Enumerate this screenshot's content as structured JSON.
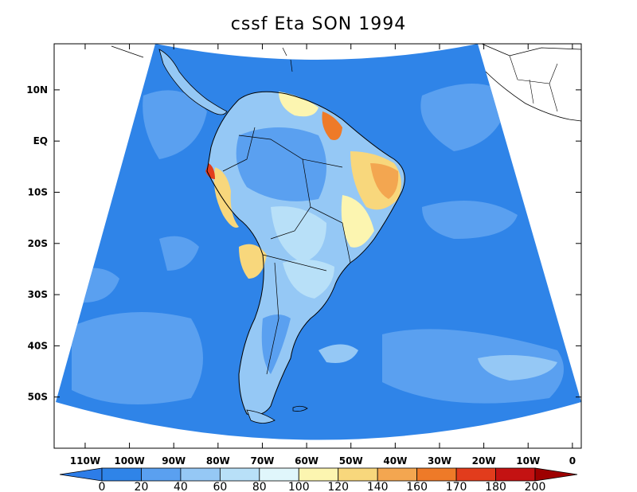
{
  "title": "cssf Eta SON 1994",
  "map": {
    "lat_labels": [
      "10N",
      "EQ",
      "10S",
      "20S",
      "30S",
      "40S",
      "50S"
    ],
    "lon_labels": [
      "110W",
      "100W",
      "90W",
      "80W",
      "70W",
      "60W",
      "50W",
      "40W",
      "30W",
      "20W",
      "10W",
      "0"
    ],
    "lat_values": [
      10,
      0,
      -10,
      -20,
      -30,
      -40,
      -50
    ],
    "lon_values": [
      -110,
      -100,
      -90,
      -80,
      -70,
      -60,
      -50,
      -40,
      -30,
      -20,
      -10,
      0
    ],
    "extent": {
      "lon_min": -117,
      "lon_max": 2,
      "lat_min": -60,
      "lat_max": 19
    }
  },
  "colorbar": {
    "labels": [
      "0",
      "20",
      "40",
      "60",
      "80",
      "100",
      "120",
      "140",
      "160",
      "170",
      "180",
      "200"
    ],
    "colors": [
      "#2d7de8",
      "#2f84e8",
      "#5aa0f0",
      "#95c8f5",
      "#b8e0f8",
      "#e0f6fb",
      "#fcf5b0",
      "#f8d77c",
      "#f3a650",
      "#ee7a28",
      "#e23c1c",
      "#c41212",
      "#9e0000"
    ]
  },
  "colors": {
    "ocean": "#2f84e8",
    "ocean_light": "#5aa0f0",
    "land_outline": "#000000"
  }
}
